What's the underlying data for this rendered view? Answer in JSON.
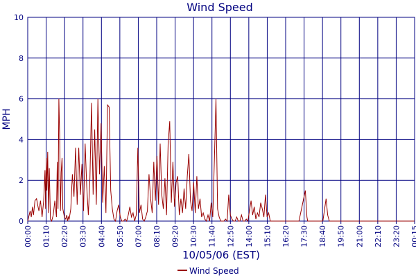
{
  "chart_data": {
    "type": "line",
    "title": "Wind Speed",
    "xlabel": "10/05/06 (EST)",
    "ylabel": "MPH",
    "ylim": [
      0,
      10
    ],
    "yticks": [
      0,
      2,
      4,
      6,
      8,
      10
    ],
    "x_time_range": [
      "00:00",
      "00:15 next day"
    ],
    "xticks": [
      "00:00",
      "01:10",
      "02:20",
      "03:30",
      "04:40",
      "05:50",
      "07:00",
      "08:10",
      "09:20",
      "10:30",
      "11:40",
      "12:50",
      "14:00",
      "15:10",
      "16:20",
      "17:30",
      "18:40",
      "19:50",
      "21:00",
      "22:10",
      "23:20",
      "00:15"
    ],
    "grid": true,
    "legend_position": "bottom-center",
    "colors": {
      "series": "#990000",
      "grid": "#000080",
      "text": "#000080"
    },
    "series": [
      {
        "name": "Wind Speed",
        "x_hours": [
          0,
          0.15,
          0.22,
          0.3,
          0.36,
          0.45,
          0.55,
          0.62,
          0.7,
          0.8,
          0.9,
          1.0,
          1.08,
          1.12,
          1.16,
          1.2,
          1.25,
          1.3,
          1.35,
          1.42,
          1.5,
          1.6,
          1.7,
          1.8,
          1.85,
          1.9,
          1.95,
          2.0,
          2.05,
          2.1,
          2.15,
          2.2,
          2.3,
          2.38,
          2.45,
          2.5,
          2.55,
          2.6,
          2.7,
          2.8,
          2.9,
          3.0,
          3.1,
          3.2,
          3.3,
          3.4,
          3.5,
          3.6,
          3.7,
          3.8,
          3.9,
          4.0,
          4.1,
          4.2,
          4.3,
          4.4,
          4.5,
          4.6,
          4.7,
          4.8,
          4.9,
          5.0,
          5.1,
          5.2,
          5.3,
          5.4,
          5.5,
          5.6,
          5.7,
          5.8,
          5.9,
          6.0,
          6.1,
          6.2,
          6.3,
          6.4,
          6.5,
          6.6,
          6.7,
          6.8,
          6.9,
          7.0,
          7.1,
          7.2,
          7.3,
          7.4,
          7.5,
          7.6,
          7.7,
          7.8,
          7.9,
          8.0,
          8.1,
          8.2,
          8.3,
          8.4,
          8.5,
          8.6,
          8.7,
          8.8,
          8.9,
          9.0,
          9.1,
          9.2,
          9.3,
          9.4,
          9.5,
          9.6,
          9.7,
          9.8,
          9.9,
          10.0,
          10.1,
          10.2,
          10.3,
          10.4,
          10.5,
          10.6,
          10.7,
          10.8,
          10.9,
          11.0,
          11.1,
          11.2,
          11.3,
          11.4,
          11.5,
          11.6,
          11.7,
          11.8,
          11.9,
          12.0,
          12.1,
          12.2,
          12.3,
          12.4,
          12.5,
          12.6,
          12.7,
          12.8,
          12.9,
          13.0,
          13.1,
          13.2,
          13.3,
          13.4,
          13.5,
          13.6,
          13.7,
          13.8,
          13.9,
          14.0,
          14.1,
          14.2,
          14.3,
          14.4,
          14.5,
          14.6,
          14.7,
          14.8,
          14.9,
          15.0,
          15.1,
          15.2,
          15.3,
          15.4,
          15.5,
          15.6,
          15.7,
          15.8,
          15.9,
          16.0,
          16.1,
          16.2,
          16.3,
          16.5,
          17.0,
          17.4,
          17.5,
          17.55,
          17.6,
          17.7,
          18.0,
          18.5,
          18.7,
          18.8,
          18.9,
          19.0,
          20.0,
          21.0,
          22.0,
          23.0,
          24.25
        ],
        "values": [
          0,
          0.5,
          0.2,
          0.7,
          0.3,
          1.0,
          1.1,
          0.8,
          0.5,
          1.0,
          0.2,
          1.0,
          2.5,
          0.6,
          3.1,
          1.5,
          3.4,
          0.4,
          2.6,
          0.1,
          0,
          0.3,
          1.0,
          0.2,
          2.9,
          0.6,
          6.0,
          4.3,
          0.5,
          2.4,
          3.1,
          0.6,
          0.2,
          0.1,
          0.3,
          0,
          0.2,
          0.1,
          0.6,
          2.3,
          1.2,
          3.6,
          0.8,
          3.6,
          1.3,
          2.8,
          0.5,
          3.8,
          1.7,
          0.3,
          2.1,
          5.8,
          1.3,
          4.5,
          0.8,
          6.0,
          2.3,
          4.8,
          0.9,
          2.7,
          0.4,
          5.7,
          5.6,
          1.5,
          0.6,
          0.1,
          0,
          0.5,
          0.8,
          0.2,
          0,
          0,
          0.1,
          0,
          0.3,
          0.7,
          0.2,
          0.4,
          0,
          0.3,
          3.6,
          0.4,
          0.8,
          0.1,
          0,
          0.2,
          0.5,
          2.3,
          1.1,
          0.4,
          2.9,
          1.0,
          3.2,
          0.8,
          3.8,
          1.3,
          0.6,
          2.1,
          0.3,
          3.8,
          4.9,
          0.9,
          2.9,
          0.7,
          1.9,
          2.2,
          0.3,
          1.1,
          0.4,
          1.6,
          0.6,
          2.2,
          3.3,
          1.0,
          0.5,
          1.9,
          0.4,
          2.2,
          0.6,
          1.1,
          0.2,
          0.4,
          0.1,
          0,
          0.3,
          0,
          0.9,
          0.2,
          3.0,
          6.0,
          0.6,
          0.2,
          0,
          0,
          0,
          0.1,
          0,
          1.3,
          0.3,
          0.1,
          0,
          0,
          0.2,
          0,
          0,
          0.3,
          0,
          0,
          0.1,
          0,
          0.5,
          1.0,
          0.3,
          0.7,
          0.1,
          0.4,
          0.2,
          0.9,
          0.6,
          0.2,
          1.3,
          0.2,
          0.4,
          0,
          0,
          0,
          0,
          0,
          0,
          0,
          0,
          0,
          0,
          0,
          0,
          0,
          0,
          1.5,
          0.2,
          0,
          0,
          0,
          0,
          0,
          1.1,
          0.3,
          0,
          0,
          0,
          0,
          0,
          0,
          0
        ]
      }
    ]
  }
}
